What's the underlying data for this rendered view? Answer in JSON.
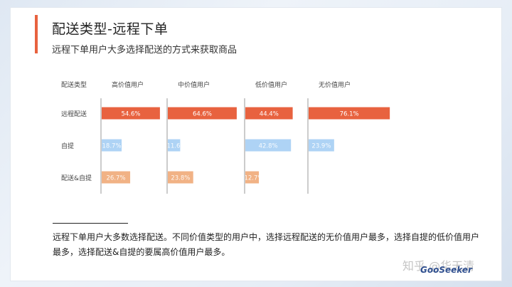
{
  "header": {
    "title": "配送类型-远程下单",
    "subtitle": "远程下单用户大多选择配送的方式来获取商品"
  },
  "chart_data": {
    "type": "bar",
    "row_header": "配送类型",
    "categories": [
      "远程配送",
      "自提",
      "配送&自提"
    ],
    "series": [
      {
        "name": "高价值用户",
        "values": [
          54.6,
          18.7,
          26.7
        ]
      },
      {
        "name": "中价值用户",
        "values": [
          64.6,
          11.6,
          23.8
        ]
      },
      {
        "name": "低价值用户",
        "values": [
          44.4,
          42.8,
          12.7
        ]
      },
      {
        "name": "无价值用户",
        "values": [
          76.1,
          23.9,
          0
        ]
      }
    ],
    "value_labels": [
      [
        "54.6%",
        "18.7%",
        "26.7%"
      ],
      [
        "64.6%",
        "11.6%",
        "23.8%"
      ],
      [
        "44.4%",
        "42.8%",
        "12.7%"
      ],
      [
        "76.1%",
        "23.9%",
        ""
      ]
    ],
    "row_colors": [
      "#e8623f",
      "#aed3f5",
      "#f1b285"
    ],
    "xlim": [
      0,
      100
    ],
    "grid": false
  },
  "footer": {
    "text": "远程下单用户大多数选择配送。不同价值类型的用户中，选择远程配送的无价值用户最多，选择自提的低价值用户最多，选择配送&自提的要属高价值用户最多。"
  },
  "watermark": {
    "text": "知乎 @华天清",
    "logo": "GooSeeker"
  },
  "colors": {
    "accent": "#e8623f"
  }
}
